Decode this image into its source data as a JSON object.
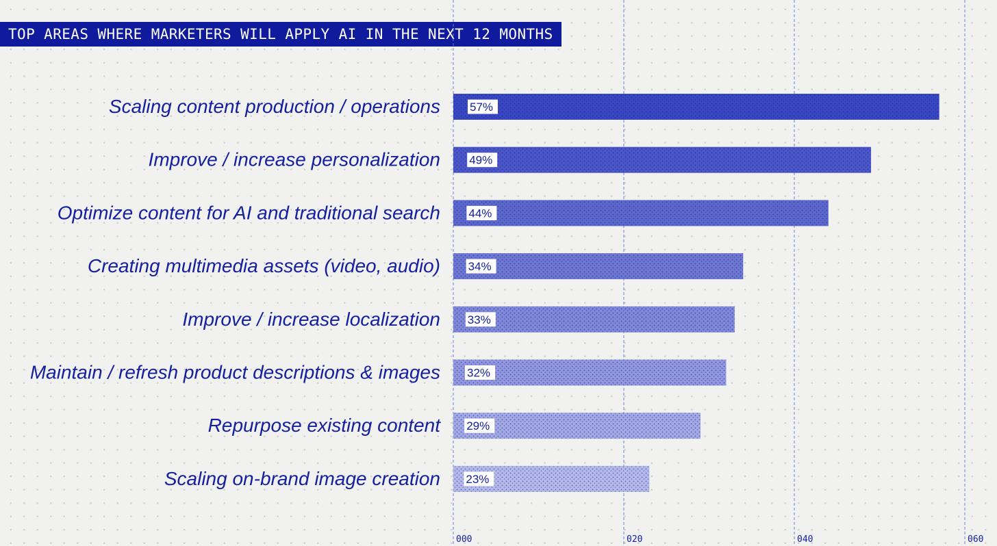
{
  "chart_data": {
    "type": "bar",
    "orientation": "horizontal",
    "title": "TOP AREAS WHERE MARKETERS WILL APPLY AI IN THE NEXT 12 MONTHS",
    "categories": [
      "Scaling content production / operations",
      "Improve / increase personalization",
      "Optimize content for AI and traditional search",
      "Creating multimedia assets (video, audio)",
      "Improve / increase localization",
      "Maintain / refresh product descriptions & images",
      "Repurpose existing content",
      "Scaling on-brand image creation"
    ],
    "values": [
      57,
      49,
      44,
      34,
      33,
      32,
      29,
      23
    ],
    "value_labels": [
      "57%",
      "49%",
      "44%",
      "34%",
      "33%",
      "32%",
      "29%",
      "23%"
    ],
    "xlim": [
      0,
      60
    ],
    "x_ticks": [
      0,
      20,
      40,
      60
    ],
    "x_tick_labels": [
      "000",
      "020",
      "040",
      "060"
    ],
    "colors": {
      "accent": "#0f1a9c",
      "bar_dark": "#3a47c2",
      "bar_light": "#b4b9ea",
      "grid": "#6f7bd4"
    }
  }
}
